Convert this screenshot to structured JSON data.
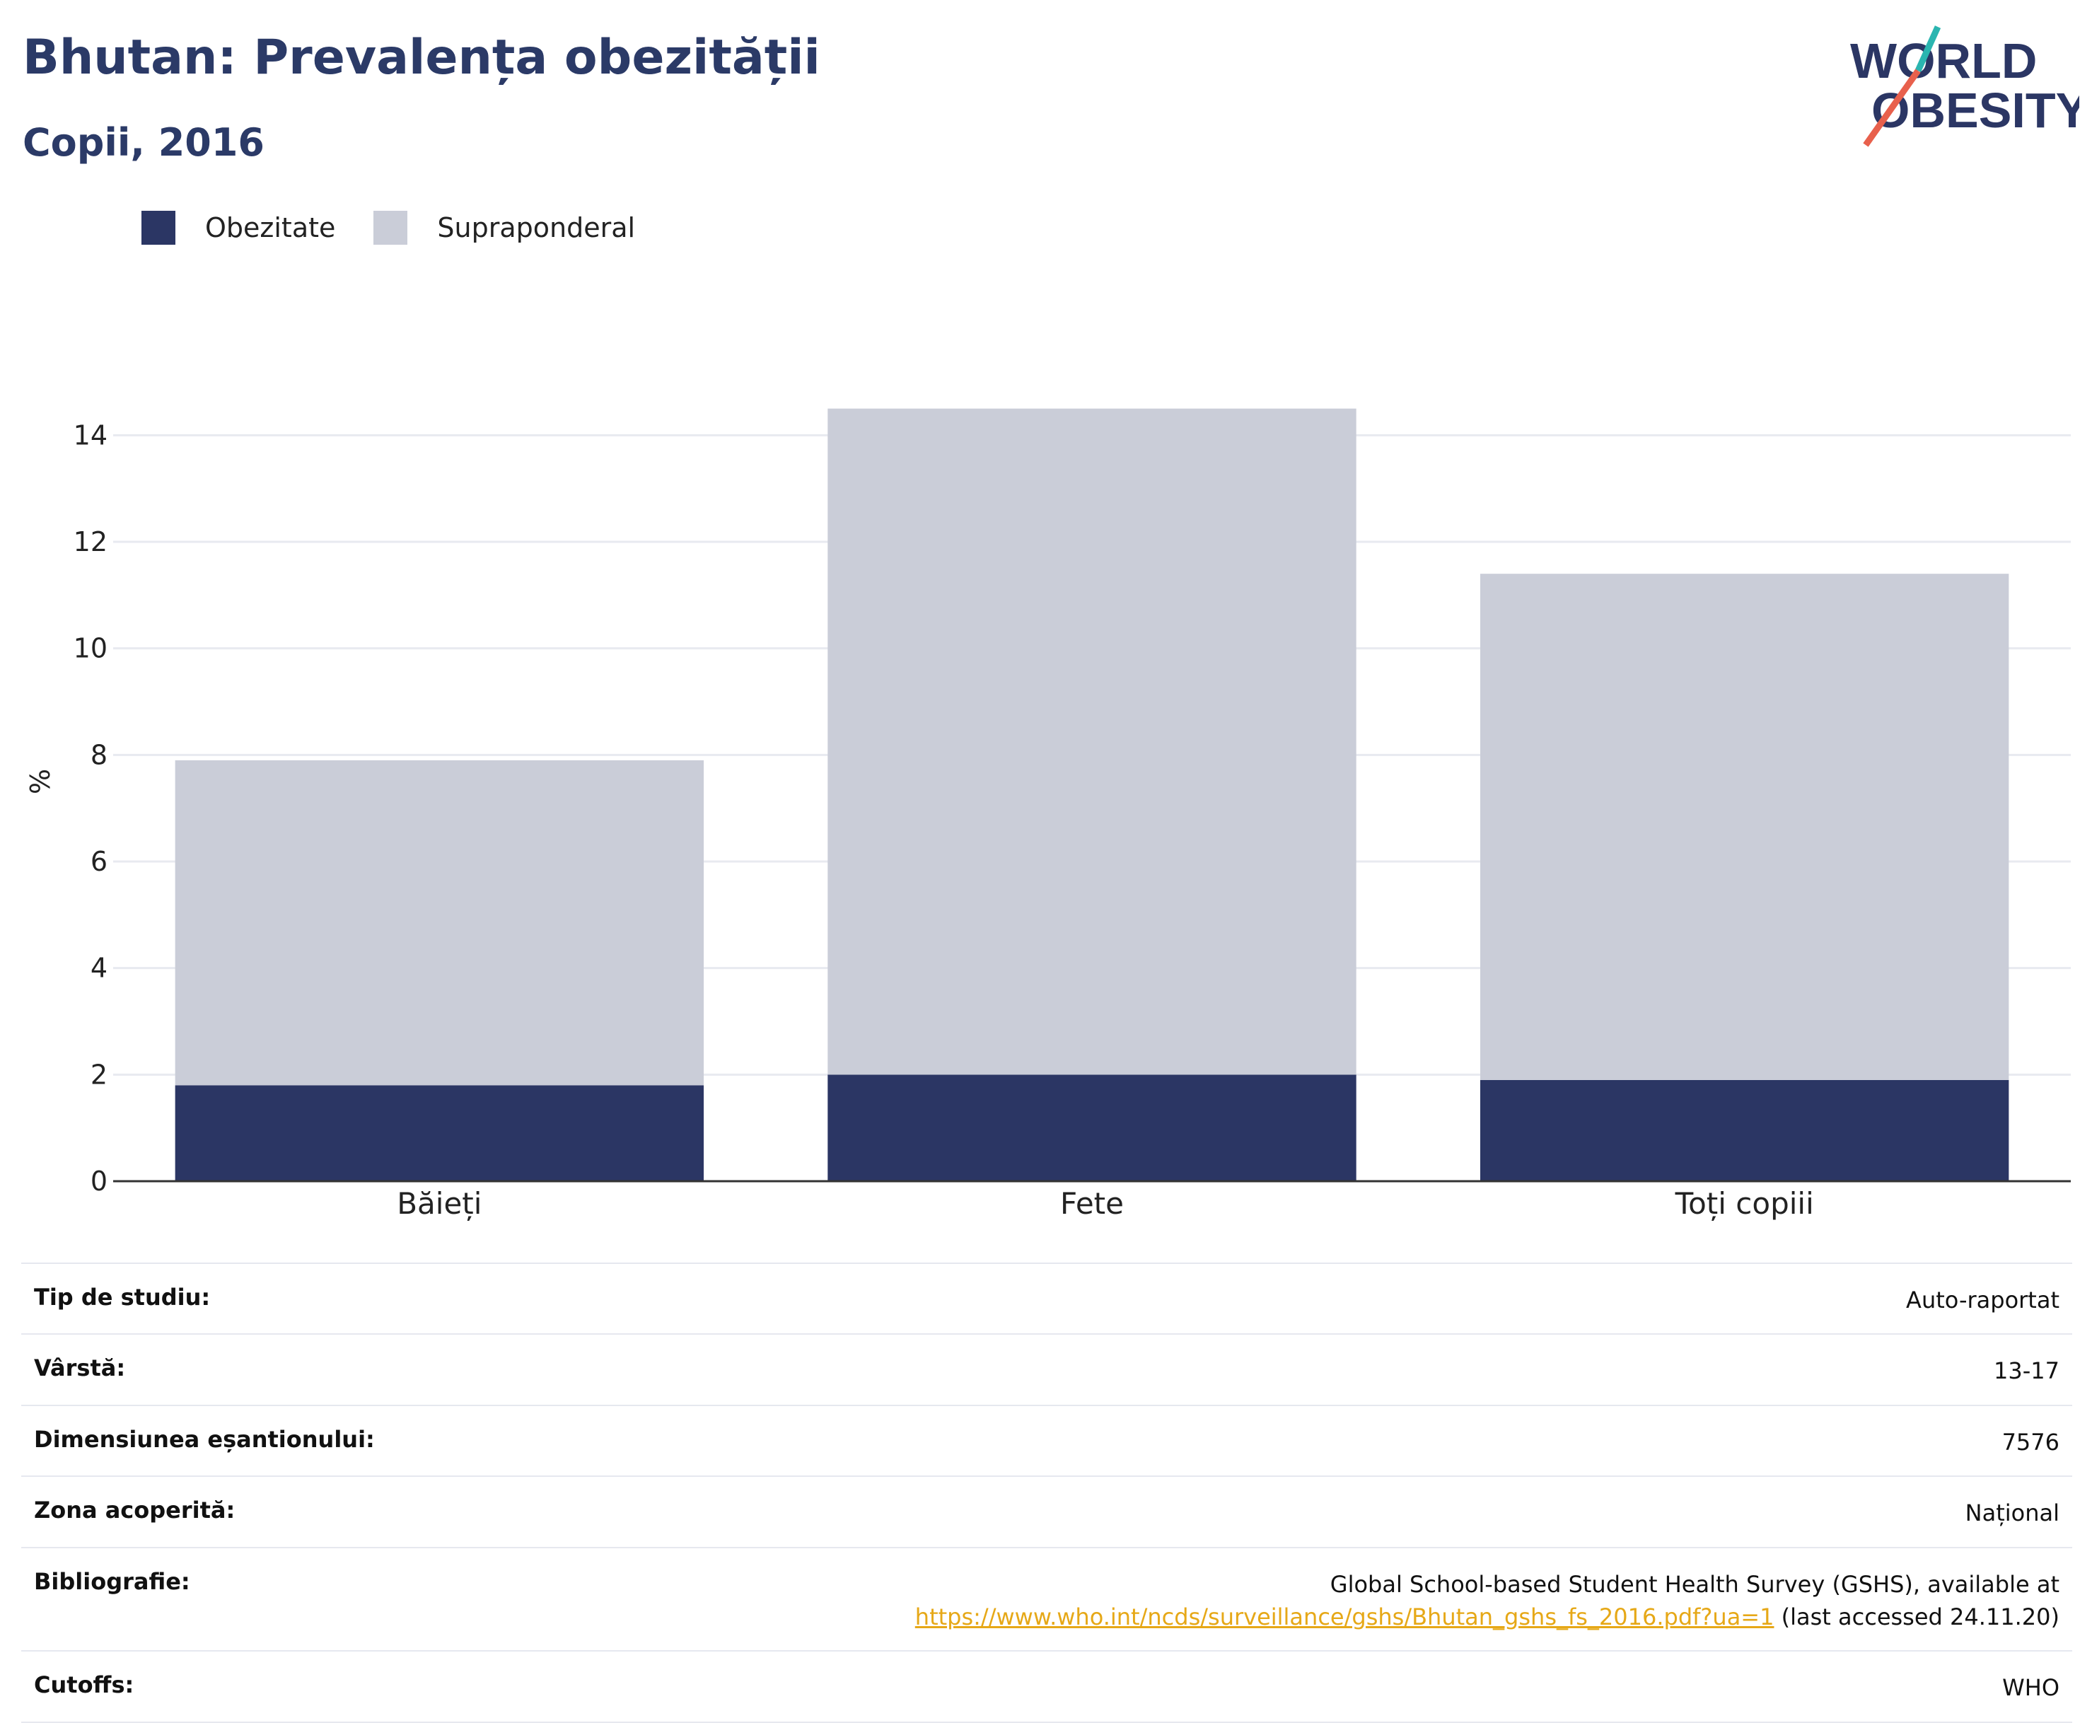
{
  "header": {
    "title": "Bhutan: Prevalența obezității",
    "subtitle": "Copii, 2016"
  },
  "logo": {
    "line1": "WORLD",
    "line2": "OBESITY"
  },
  "legend": {
    "obesity_label": "Obezitate",
    "overweight_label": "Supraponderal"
  },
  "colors": {
    "obesity": "#2b3664",
    "overweight": "#cacdd8",
    "grid": "#e8eaf0",
    "axis": "#333333"
  },
  "chart_data": {
    "type": "bar",
    "stacked": true,
    "categories": [
      "Băieți",
      "Fete",
      "Toți copiii"
    ],
    "series": [
      {
        "name": "Obezitate",
        "values": [
          1.8,
          2.0,
          1.9
        ]
      },
      {
        "name": "Supraponderal",
        "values": [
          6.1,
          12.5,
          9.5
        ]
      }
    ],
    "ylabel": "%",
    "ylim": [
      0,
      15
    ],
    "yticks": [
      0,
      2,
      4,
      6,
      8,
      10,
      12,
      14
    ],
    "grid": true,
    "legend_position": "top-left"
  },
  "meta": {
    "rows": [
      {
        "key": "Tip de studiu:",
        "value": "Auto-raportat"
      },
      {
        "key": "Vârstă:",
        "value": "13-17"
      },
      {
        "key": "Dimensiunea eșantionului:",
        "value": "7576"
      },
      {
        "key": "Zona acoperită:",
        "value": "Național"
      }
    ],
    "bibliography": {
      "key": "Bibliografie:",
      "line1": "Global School-based Student Health Survey (GSHS), available at",
      "link": "https://www.who.int/ncds/surveillance/gshs/Bhutan_gshs_fs_2016.pdf?ua=1",
      "suffix": " (last accessed 24.11.20)"
    },
    "cutoffs": {
      "key": "Cutoffs:",
      "value": "WHO"
    }
  }
}
